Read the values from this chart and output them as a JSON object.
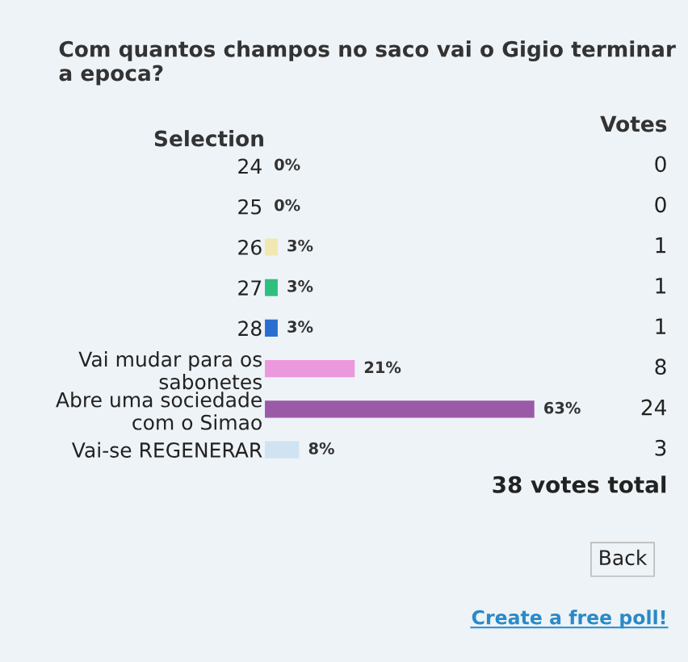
{
  "chart_data": {
    "type": "bar",
    "orientation": "horizontal",
    "title": "Com quantos champos no saco vai o Gigio terminar a epoca?",
    "ylabel": "Selection",
    "y2label": "Votes",
    "categories": [
      "24",
      "25",
      "26",
      "27",
      "28",
      "Vai mudar para os\nsabonetes",
      "Abre uma sociedade\ncom o Simao",
      "Vai-se REGENERAR"
    ],
    "values": [
      0,
      0,
      3,
      3,
      3,
      21,
      63,
      8
    ],
    "value_labels": [
      "0%",
      "0%",
      "3%",
      "3%",
      "3%",
      "21%",
      "63%",
      "8%"
    ],
    "colors": [
      "#d08080",
      "#b0b0b0",
      "#f0e8b0",
      "#2fbf7f",
      "#2a6fd0",
      "#ec98dc",
      "#9a5aa8",
      "#cfe3f2"
    ],
    "annotations": [
      "0",
      "0",
      "1",
      "1",
      "1",
      "8",
      "24",
      "3",
      "38 votes total",
      "Back",
      "Create a free poll!"
    ]
  }
}
